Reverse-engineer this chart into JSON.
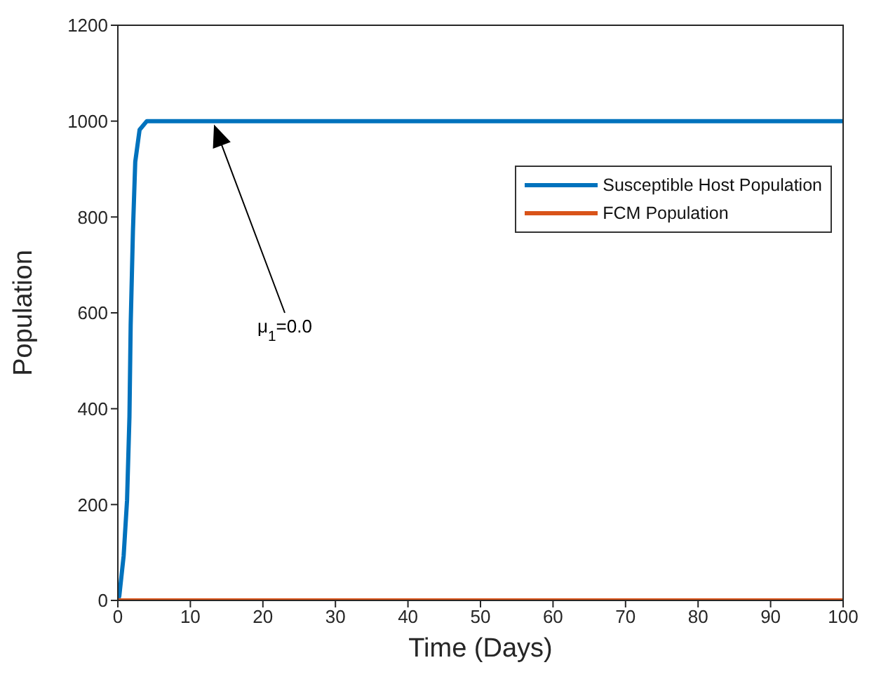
{
  "chart_data": {
    "type": "line",
    "xlabel": "Time (Days)",
    "ylabel": "Population",
    "xlim": [
      0,
      100
    ],
    "xticks": [
      0,
      10,
      20,
      30,
      40,
      50,
      60,
      70,
      80,
      90,
      100
    ],
    "ylim": [
      0,
      1200
    ],
    "yticks": [
      0,
      200,
      400,
      600,
      800,
      1000,
      1200
    ],
    "series": [
      {
        "name": "Susceptible Host Population",
        "color": "#0072bd",
        "x": [
          0,
          0.2,
          0.8,
          1.27,
          1.6,
          1.77,
          2.08,
          2.4,
          3,
          4,
          20,
          40,
          60,
          80,
          100
        ],
        "values": [
          0,
          9,
          93,
          209,
          383,
          575,
          770,
          915,
          982,
          1000,
          1000,
          1000,
          1000,
          1000,
          1000
        ]
      },
      {
        "name": "FCM Population",
        "color": "#d95319",
        "x": [
          0,
          100
        ],
        "values": [
          0,
          0
        ]
      }
    ],
    "legend": "top right",
    "grid": false,
    "marker": "none",
    "line_style": "solid",
    "annotations": [
      "μ$_{1}$=0.0"
    ]
  }
}
